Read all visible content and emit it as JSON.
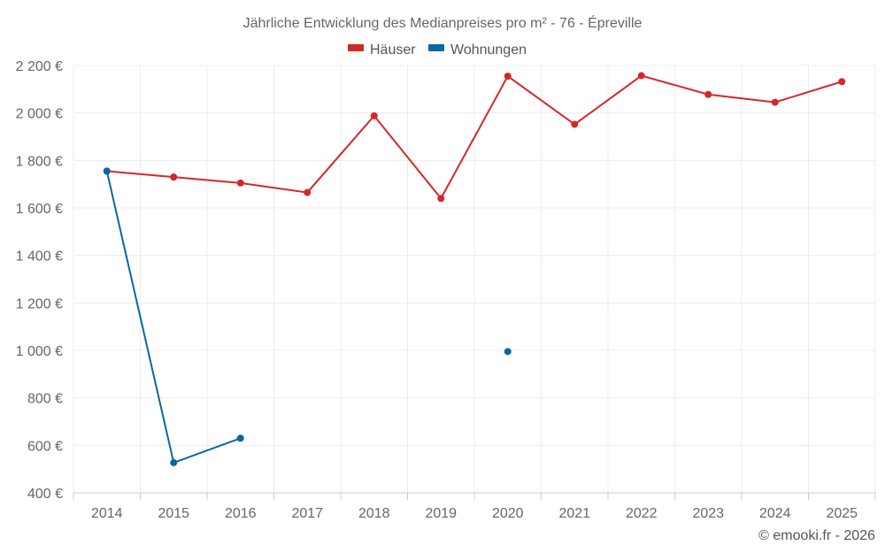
{
  "chart_data": {
    "type": "line",
    "title": "Jährliche Entwicklung des Medianpreises pro m² - 76 - Épreville",
    "categories": [
      "2014",
      "2015",
      "2016",
      "2017",
      "2018",
      "2019",
      "2020",
      "2021",
      "2022",
      "2023",
      "2024",
      "2025"
    ],
    "series": [
      {
        "name": "Häuser",
        "color": "#d62728",
        "values": [
          1755,
          1730,
          1705,
          1665,
          1988,
          1640,
          2155,
          1952,
          2157,
          2078,
          2045,
          2132
        ]
      },
      {
        "name": "Wohnungen",
        "color": "#0a67a3",
        "values": [
          1755,
          527,
          630,
          null,
          null,
          null,
          995,
          null,
          null,
          null,
          null,
          null
        ]
      }
    ],
    "ylim": [
      400,
      2200
    ],
    "yticks": [
      400,
      600,
      800,
      1000,
      1200,
      1400,
      1600,
      1800,
      2000,
      2200
    ],
    "ytick_labels": [
      "400 €",
      "600 €",
      "800 €",
      "1 000 €",
      "1 200 €",
      "1 400 €",
      "1 600 €",
      "1 800 €",
      "2 000 €",
      "2 200 €"
    ],
    "legend_position": "top-center",
    "grid": true
  },
  "credit": "© emooki.fr - 2026"
}
